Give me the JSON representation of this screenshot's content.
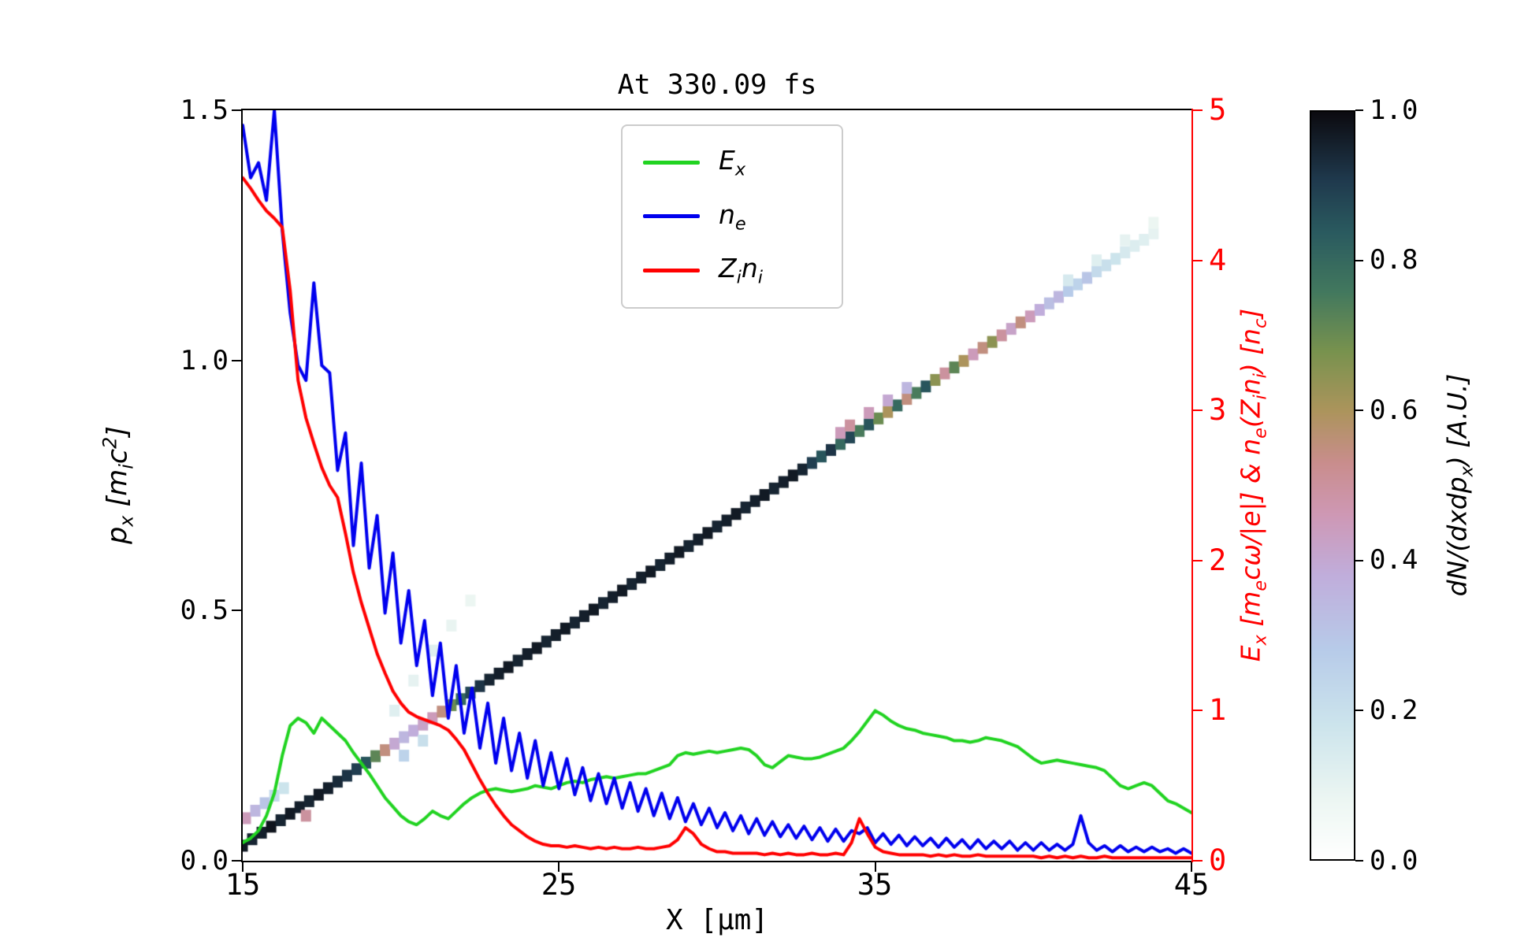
{
  "figure": {
    "background": "#ffffff"
  },
  "chart_data": {
    "type": "line",
    "title": "At 330.09 fs",
    "x_axis": {
      "label": "X [μm]",
      "range": [
        15,
        45
      ],
      "ticks": [
        "15",
        "25",
        "35",
        "45"
      ]
    },
    "left_axis": {
      "label": "p_{x} [m_{i}c^{2}]",
      "range": [
        0,
        1.5
      ],
      "ticks": [
        "1.5",
        "1.0",
        "0.5",
        "0.0"
      ]
    },
    "right_axis": {
      "label": "E_{x} [m_{e}cω/|e|] & n_{e}(Z_{i}n_{i}) [n_{c}]",
      "range": [
        0,
        5
      ],
      "ticks": [
        "5",
        "4",
        "3",
        "2",
        "1",
        "0"
      ],
      "color": "#ff0000"
    },
    "colorbar": {
      "label": "dN/(dxdp_{x}) [A.U.]",
      "range": [
        0,
        1
      ],
      "ticks": [
        "1.0",
        "0.8",
        "0.6",
        "0.4",
        "0.2",
        "0.0"
      ],
      "colormap_stops": [
        [
          0.0,
          255,
          255,
          255
        ],
        [
          0.08,
          236,
          246,
          242
        ],
        [
          0.18,
          204,
          228,
          236
        ],
        [
          0.28,
          183,
          203,
          233
        ],
        [
          0.38,
          192,
          173,
          219
        ],
        [
          0.46,
          206,
          152,
          181
        ],
        [
          0.53,
          201,
          141,
          141
        ],
        [
          0.6,
          172,
          148,
          92
        ],
        [
          0.68,
          120,
          146,
          78
        ],
        [
          0.76,
          66,
          120,
          94
        ],
        [
          0.84,
          42,
          90,
          95
        ],
        [
          0.91,
          31,
          57,
          77
        ],
        [
          1.0,
          12,
          11,
          16
        ]
      ]
    },
    "legend": [
      {
        "label": "E_{x}",
        "color": "#21d321"
      },
      {
        "label": "n_{e}",
        "color": "#0000ee"
      },
      {
        "label": "Z_{i}n_{i}",
        "color": "#ff0000"
      }
    ],
    "series": [
      {
        "name": "E_x",
        "color": "#21d321",
        "axis": "right",
        "x_start": 15,
        "x_step": 0.25,
        "y": [
          0.12,
          0.15,
          0.2,
          0.3,
          0.45,
          0.7,
          0.9,
          0.95,
          0.92,
          0.85,
          0.95,
          0.9,
          0.85,
          0.8,
          0.72,
          0.65,
          0.58,
          0.5,
          0.42,
          0.36,
          0.3,
          0.26,
          0.24,
          0.28,
          0.33,
          0.3,
          0.28,
          0.33,
          0.38,
          0.42,
          0.45,
          0.47,
          0.48,
          0.47,
          0.46,
          0.47,
          0.48,
          0.5,
          0.49,
          0.48,
          0.5,
          0.52,
          0.53,
          0.52,
          0.54,
          0.55,
          0.56,
          0.55,
          0.56,
          0.57,
          0.58,
          0.58,
          0.6,
          0.62,
          0.64,
          0.7,
          0.72,
          0.71,
          0.72,
          0.73,
          0.72,
          0.73,
          0.74,
          0.75,
          0.74,
          0.7,
          0.64,
          0.62,
          0.66,
          0.7,
          0.69,
          0.68,
          0.68,
          0.69,
          0.71,
          0.73,
          0.75,
          0.8,
          0.86,
          0.93,
          1.0,
          0.97,
          0.93,
          0.9,
          0.88,
          0.87,
          0.85,
          0.84,
          0.83,
          0.82,
          0.8,
          0.8,
          0.79,
          0.8,
          0.82,
          0.81,
          0.8,
          0.78,
          0.76,
          0.72,
          0.68,
          0.65,
          0.66,
          0.67,
          0.66,
          0.65,
          0.64,
          0.63,
          0.62,
          0.6,
          0.55,
          0.5,
          0.48,
          0.5,
          0.52,
          0.5,
          0.45,
          0.4,
          0.38,
          0.35,
          0.32
        ]
      },
      {
        "name": "n_e",
        "color": "#0000ee",
        "axis": "right",
        "x_start": 15,
        "x_step": 0.25,
        "y": [
          4.9,
          4.55,
          4.65,
          4.4,
          5.0,
          4.2,
          3.65,
          3.3,
          3.2,
          3.85,
          3.3,
          3.25,
          2.6,
          2.85,
          2.1,
          2.65,
          1.95,
          2.3,
          1.65,
          2.05,
          1.45,
          1.8,
          1.3,
          1.6,
          1.1,
          1.45,
          0.95,
          1.3,
          0.85,
          1.15,
          0.75,
          1.05,
          0.65,
          0.95,
          0.6,
          0.85,
          0.55,
          0.8,
          0.5,
          0.72,
          0.48,
          0.68,
          0.44,
          0.62,
          0.4,
          0.58,
          0.38,
          0.55,
          0.35,
          0.52,
          0.33,
          0.48,
          0.3,
          0.45,
          0.28,
          0.42,
          0.26,
          0.38,
          0.24,
          0.35,
          0.22,
          0.32,
          0.2,
          0.3,
          0.18,
          0.28,
          0.17,
          0.26,
          0.16,
          0.24,
          0.15,
          0.23,
          0.14,
          0.22,
          0.13,
          0.21,
          0.13,
          0.2,
          0.18,
          0.22,
          0.12,
          0.18,
          0.11,
          0.17,
          0.1,
          0.16,
          0.1,
          0.15,
          0.09,
          0.15,
          0.09,
          0.14,
          0.08,
          0.14,
          0.08,
          0.13,
          0.08,
          0.13,
          0.07,
          0.12,
          0.07,
          0.12,
          0.07,
          0.11,
          0.07,
          0.11,
          0.3,
          0.12,
          0.07,
          0.1,
          0.06,
          0.1,
          0.06,
          0.09,
          0.06,
          0.09,
          0.06,
          0.08,
          0.05,
          0.08,
          0.05
        ]
      },
      {
        "name": "Z_i n_i",
        "color": "#ff0000",
        "axis": "right",
        "x_start": 15,
        "x_step": 0.25,
        "y": [
          4.55,
          4.48,
          4.4,
          4.33,
          4.28,
          4.22,
          3.8,
          3.2,
          2.95,
          2.78,
          2.62,
          2.5,
          2.42,
          2.18,
          1.92,
          1.72,
          1.55,
          1.38,
          1.25,
          1.13,
          1.05,
          0.99,
          0.96,
          0.94,
          0.92,
          0.9,
          0.87,
          0.81,
          0.74,
          0.64,
          0.54,
          0.45,
          0.37,
          0.3,
          0.24,
          0.2,
          0.16,
          0.13,
          0.11,
          0.1,
          0.1,
          0.09,
          0.1,
          0.09,
          0.08,
          0.09,
          0.08,
          0.09,
          0.08,
          0.08,
          0.09,
          0.08,
          0.08,
          0.09,
          0.1,
          0.14,
          0.22,
          0.18,
          0.11,
          0.08,
          0.06,
          0.06,
          0.05,
          0.05,
          0.05,
          0.05,
          0.04,
          0.05,
          0.04,
          0.05,
          0.04,
          0.04,
          0.05,
          0.04,
          0.04,
          0.05,
          0.04,
          0.12,
          0.28,
          0.18,
          0.09,
          0.06,
          0.05,
          0.04,
          0.04,
          0.04,
          0.04,
          0.03,
          0.04,
          0.03,
          0.04,
          0.03,
          0.03,
          0.04,
          0.03,
          0.03,
          0.03,
          0.03,
          0.03,
          0.03,
          0.03,
          0.02,
          0.03,
          0.02,
          0.03,
          0.02,
          0.03,
          0.02,
          0.02,
          0.03,
          0.02,
          0.02,
          0.02,
          0.02,
          0.02,
          0.02,
          0.02,
          0.02,
          0.02,
          0.02,
          0.02
        ]
      }
    ],
    "heatmap": {
      "value_label": "dN/(dxdp_x)",
      "cells": [
        [
          15.0,
          0.03,
          0.97
        ],
        [
          15.3,
          0.043,
          0.95
        ],
        [
          15.6,
          0.056,
          0.96
        ],
        [
          15.9,
          0.068,
          0.98
        ],
        [
          16.2,
          0.081,
          0.95
        ],
        [
          16.5,
          0.094,
          0.97
        ],
        [
          16.8,
          0.107,
          0.96
        ],
        [
          17.1,
          0.119,
          0.95
        ],
        [
          17.4,
          0.132,
          0.97
        ],
        [
          17.7,
          0.145,
          0.96
        ],
        [
          18.0,
          0.158,
          0.94
        ],
        [
          18.3,
          0.17,
          0.92
        ],
        [
          18.6,
          0.183,
          0.9
        ],
        [
          18.9,
          0.196,
          0.85
        ],
        [
          19.2,
          0.209,
          0.72
        ],
        [
          19.5,
          0.221,
          0.55
        ],
        [
          19.8,
          0.234,
          0.4
        ],
        [
          20.1,
          0.247,
          0.35
        ],
        [
          20.4,
          0.26,
          0.38
        ],
        [
          20.7,
          0.272,
          0.42
        ],
        [
          21.0,
          0.285,
          0.45
        ],
        [
          21.3,
          0.298,
          0.55
        ],
        [
          21.6,
          0.311,
          0.7
        ],
        [
          21.9,
          0.323,
          0.8
        ],
        [
          22.2,
          0.336,
          0.88
        ],
        [
          22.5,
          0.349,
          0.92
        ],
        [
          22.8,
          0.362,
          0.95
        ],
        [
          23.1,
          0.374,
          0.96
        ],
        [
          23.4,
          0.387,
          0.97
        ],
        [
          23.7,
          0.4,
          0.95
        ],
        [
          24.0,
          0.413,
          0.96
        ],
        [
          24.3,
          0.425,
          0.97
        ],
        [
          24.6,
          0.438,
          0.95
        ],
        [
          24.9,
          0.451,
          0.96
        ],
        [
          25.2,
          0.464,
          0.97
        ],
        [
          25.5,
          0.476,
          0.95
        ],
        [
          25.8,
          0.489,
          0.96
        ],
        [
          26.1,
          0.502,
          0.97
        ],
        [
          26.4,
          0.515,
          0.95
        ],
        [
          26.7,
          0.527,
          0.96
        ],
        [
          27.0,
          0.54,
          0.97
        ],
        [
          27.3,
          0.553,
          0.95
        ],
        [
          27.6,
          0.566,
          0.96
        ],
        [
          27.9,
          0.578,
          0.97
        ],
        [
          28.2,
          0.591,
          0.95
        ],
        [
          28.5,
          0.604,
          0.96
        ],
        [
          28.8,
          0.617,
          0.97
        ],
        [
          29.1,
          0.629,
          0.95
        ],
        [
          29.4,
          0.642,
          0.96
        ],
        [
          29.7,
          0.655,
          0.97
        ],
        [
          30.0,
          0.668,
          0.95
        ],
        [
          30.3,
          0.68,
          0.96
        ],
        [
          30.6,
          0.693,
          0.97
        ],
        [
          30.9,
          0.706,
          0.95
        ],
        [
          31.2,
          0.719,
          0.96
        ],
        [
          31.5,
          0.731,
          0.97
        ],
        [
          31.8,
          0.744,
          0.95
        ],
        [
          32.1,
          0.757,
          0.96
        ],
        [
          32.4,
          0.77,
          0.97
        ],
        [
          32.7,
          0.782,
          0.95
        ],
        [
          33.0,
          0.795,
          0.9
        ],
        [
          33.3,
          0.808,
          0.85
        ],
        [
          33.6,
          0.821,
          0.92
        ],
        [
          33.9,
          0.833,
          0.8
        ],
        [
          34.2,
          0.846,
          0.88
        ],
        [
          34.5,
          0.859,
          0.75
        ],
        [
          34.8,
          0.872,
          0.85
        ],
        [
          35.1,
          0.884,
          0.7
        ],
        [
          35.4,
          0.897,
          0.6
        ],
        [
          35.7,
          0.91,
          0.8
        ],
        [
          36.0,
          0.923,
          0.55
        ],
        [
          36.3,
          0.935,
          0.75
        ],
        [
          36.6,
          0.948,
          0.85
        ],
        [
          36.9,
          0.961,
          0.65
        ],
        [
          37.2,
          0.974,
          0.5
        ],
        [
          37.5,
          0.986,
          0.72
        ],
        [
          37.8,
          0.999,
          0.6
        ],
        [
          38.1,
          1.012,
          0.45
        ],
        [
          38.4,
          1.025,
          0.55
        ],
        [
          38.7,
          1.037,
          0.65
        ],
        [
          39.0,
          1.05,
          0.5
        ],
        [
          39.3,
          1.063,
          0.42
        ],
        [
          39.6,
          1.076,
          0.55
        ],
        [
          39.9,
          1.088,
          0.45
        ],
        [
          40.2,
          1.101,
          0.38
        ],
        [
          40.5,
          1.114,
          0.32
        ],
        [
          40.8,
          1.127,
          0.35
        ],
        [
          41.1,
          1.139,
          0.28
        ],
        [
          41.4,
          1.152,
          0.25
        ],
        [
          41.7,
          1.165,
          0.3
        ],
        [
          42.0,
          1.178,
          0.22
        ],
        [
          42.3,
          1.19,
          0.2
        ],
        [
          42.6,
          1.203,
          0.18
        ],
        [
          42.9,
          1.216,
          0.15
        ],
        [
          43.2,
          1.229,
          0.13
        ],
        [
          43.5,
          1.241,
          0.12
        ],
        [
          43.8,
          1.254,
          0.1
        ],
        [
          15.1,
          0.085,
          0.45
        ],
        [
          15.4,
          0.1,
          0.35
        ],
        [
          15.7,
          0.115,
          0.3
        ],
        [
          16.0,
          0.13,
          0.22
        ],
        [
          16.3,
          0.145,
          0.18
        ],
        [
          17.0,
          0.09,
          0.5
        ],
        [
          19.8,
          0.3,
          0.12
        ],
        [
          20.4,
          0.36,
          0.1
        ],
        [
          21.0,
          0.42,
          0.12
        ],
        [
          21.6,
          0.47,
          0.09
        ],
        [
          22.2,
          0.52,
          0.08
        ],
        [
          20.1,
          0.21,
          0.25
        ],
        [
          20.7,
          0.24,
          0.2
        ],
        [
          33.9,
          0.855,
          0.45
        ],
        [
          34.2,
          0.87,
          0.5
        ],
        [
          34.8,
          0.895,
          0.45
        ],
        [
          35.4,
          0.92,
          0.4
        ],
        [
          36.0,
          0.945,
          0.35
        ],
        [
          41.1,
          1.16,
          0.15
        ],
        [
          42.0,
          1.2,
          0.12
        ],
        [
          42.9,
          1.24,
          0.1
        ],
        [
          43.8,
          1.275,
          0.08
        ]
      ]
    }
  }
}
